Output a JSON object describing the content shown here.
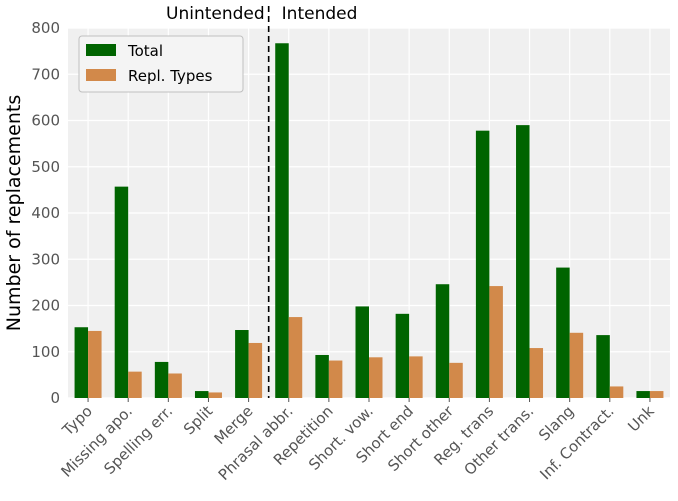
{
  "chart_data": {
    "type": "bar",
    "title": "",
    "xlabel": "",
    "ylabel": "Number of replacements",
    "ylim": [
      0,
      800
    ],
    "yticks": [
      0,
      100,
      200,
      300,
      400,
      500,
      600,
      700,
      800
    ],
    "grid": true,
    "legend_position": "top-left",
    "categories": [
      "Typo",
      "Missing apo.",
      "Spelling err.",
      "Split",
      "Merge",
      "Phrasal abbr.",
      "Repetition",
      "Short. vow.",
      "Short end",
      "Short other",
      "Reg. trans",
      "Other trans.",
      "Slang",
      "Inf. Contract.",
      "Unk"
    ],
    "series": [
      {
        "name": "Total",
        "color": "#006400",
        "values": [
          153,
          457,
          78,
          15,
          147,
          767,
          93,
          198,
          182,
          246,
          578,
          590,
          282,
          136,
          15
        ]
      },
      {
        "name": "Repl. Types",
        "color": "#d2894a",
        "values": [
          145,
          57,
          53,
          12,
          119,
          175,
          81,
          88,
          90,
          76,
          242,
          108,
          141,
          25,
          15
        ]
      }
    ],
    "annotations": {
      "divider_after_index": 4,
      "left_label": "Unintended",
      "right_label": "Intended"
    }
  }
}
